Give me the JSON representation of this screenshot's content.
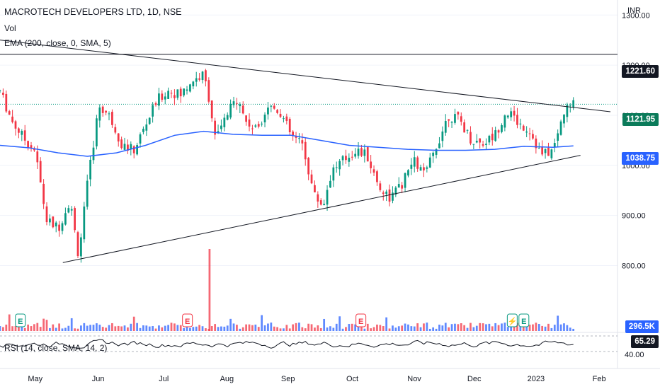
{
  "chart_data": {
    "type": "candlestick",
    "title": "MACROTECH DEVELOPERS LTD, 1D, NSE",
    "currency": "INR",
    "indicators": {
      "volume_label": "Vol",
      "ema_label": "EMA (200, close, 0, SMA, 5)",
      "rsi_label": "RSI (14, close, SMA, 14, 2)"
    },
    "price_axis": {
      "min": 740,
      "max": 1330,
      "ticks": [
        "1300.00",
        "1200.00",
        "1100.00",
        "1000.00",
        "900.00",
        "800.00"
      ]
    },
    "rsi_axis": {
      "ticks": [
        "40.00"
      ]
    },
    "time_axis": {
      "labels": [
        "May",
        "Jun",
        "Jul",
        "Aug",
        "Sep",
        "Oct",
        "Nov",
        "Dec",
        "2023",
        "Feb"
      ]
    },
    "price_tags": {
      "horizontal_level": "1221.60",
      "last_price": "1121.95",
      "ema_value": "1038.75",
      "volume_value": "296.5K",
      "rsi_value": "65.29"
    },
    "horizontal_level_value": 1221.6,
    "last_price_value": 1121.95,
    "ema_value_num": 1038.75,
    "trendlines": [
      {
        "name": "upper-trendline",
        "from": {
          "t": 0,
          "p": 1250
        },
        "to": {
          "t": 1,
          "p": 1107
        }
      },
      {
        "name": "lower-trendline",
        "from": {
          "t": 0.1,
          "p": 806
        },
        "to": {
          "t": 0.985,
          "p": 1020
        }
      }
    ],
    "price_path": [
      [
        0.0,
        1148
      ],
      [
        0.02,
        1090
      ],
      [
        0.04,
        1055
      ],
      [
        0.06,
        1030
      ],
      [
        0.08,
        890
      ],
      [
        0.1,
        875
      ],
      [
        0.12,
        930
      ],
      [
        0.135,
        820
      ],
      [
        0.15,
        960
      ],
      [
        0.17,
        1120
      ],
      [
        0.19,
        1095
      ],
      [
        0.21,
        1040
      ],
      [
        0.23,
        1030
      ],
      [
        0.25,
        1080
      ],
      [
        0.27,
        1130
      ],
      [
        0.29,
        1150
      ],
      [
        0.31,
        1140
      ],
      [
        0.33,
        1170
      ],
      [
        0.35,
        1180
      ],
      [
        0.36,
        1130
      ],
      [
        0.37,
        1050
      ],
      [
        0.39,
        1100
      ],
      [
        0.41,
        1140
      ],
      [
        0.42,
        1090
      ],
      [
        0.44,
        1070
      ],
      [
        0.46,
        1120
      ],
      [
        0.48,
        1110
      ],
      [
        0.5,
        1060
      ],
      [
        0.52,
        1040
      ],
      [
        0.54,
        940
      ],
      [
        0.555,
        920
      ],
      [
        0.57,
        990
      ],
      [
        0.59,
        1010
      ],
      [
        0.61,
        1030
      ],
      [
        0.63,
        1020
      ],
      [
        0.65,
        960
      ],
      [
        0.67,
        935
      ],
      [
        0.69,
        960
      ],
      [
        0.71,
        1010
      ],
      [
        0.73,
        980
      ],
      [
        0.75,
        1040
      ],
      [
        0.77,
        1100
      ],
      [
        0.79,
        1090
      ],
      [
        0.81,
        1050
      ],
      [
        0.83,
        1045
      ],
      [
        0.85,
        1060
      ],
      [
        0.87,
        1110
      ],
      [
        0.89,
        1085
      ],
      [
        0.91,
        1070
      ],
      [
        0.93,
        1020
      ],
      [
        0.95,
        1030
      ],
      [
        0.97,
        1110
      ],
      [
        0.985,
        1122
      ]
    ],
    "ema_path": [
      [
        0.0,
        1040
      ],
      [
        0.05,
        1035
      ],
      [
        0.1,
        1025
      ],
      [
        0.15,
        1018
      ],
      [
        0.2,
        1025
      ],
      [
        0.25,
        1040
      ],
      [
        0.3,
        1060
      ],
      [
        0.35,
        1068
      ],
      [
        0.4,
        1062
      ],
      [
        0.45,
        1060
      ],
      [
        0.5,
        1060
      ],
      [
        0.55,
        1050
      ],
      [
        0.6,
        1040
      ],
      [
        0.65,
        1036
      ],
      [
        0.7,
        1032
      ],
      [
        0.75,
        1030
      ],
      [
        0.8,
        1030
      ],
      [
        0.85,
        1032
      ],
      [
        0.9,
        1038
      ],
      [
        0.95,
        1036
      ],
      [
        0.985,
        1039
      ]
    ],
    "volume_spikes": [
      {
        "t": 0.36,
        "value": 296.5,
        "relative": 1.0
      }
    ]
  },
  "colors": {
    "up": "#089981",
    "down": "#f23645",
    "ema": "#2962ff",
    "trendline": "#131722",
    "grid": "#f0f3fa",
    "rsi": "#131722"
  },
  "event_markers": [
    {
      "label": "E",
      "t": 0.035
    },
    {
      "label": "E",
      "t": 0.322
    },
    {
      "label": "E",
      "t": 0.62
    },
    {
      "label": "⚡",
      "t": 0.88
    },
    {
      "label": "E",
      "t": 0.9
    }
  ]
}
